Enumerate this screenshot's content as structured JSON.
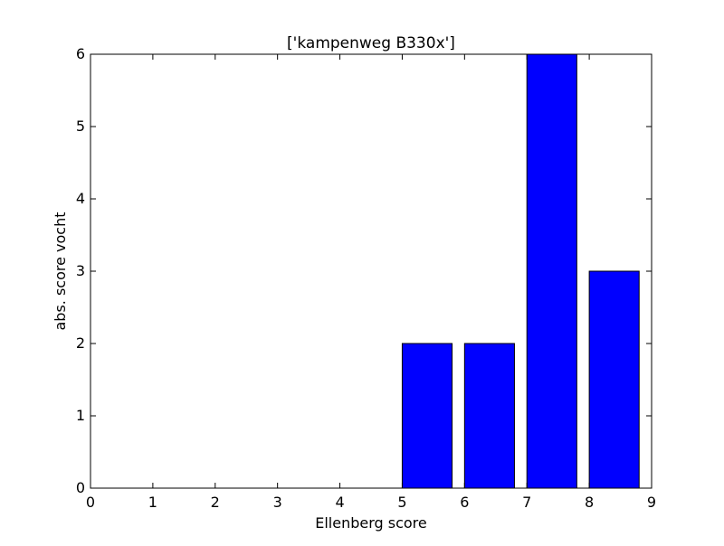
{
  "chart_data": {
    "type": "bar",
    "title": "['kampenweg B330x']",
    "xlabel": "Ellenberg score",
    "ylabel": "abs. score vocht",
    "xlim": [
      0,
      9
    ],
    "ylim": [
      0,
      6
    ],
    "xticks": [
      "0",
      "1",
      "2",
      "3",
      "4",
      "5",
      "6",
      "7",
      "8",
      "9"
    ],
    "yticks": [
      "0",
      "1",
      "2",
      "3",
      "4",
      "5",
      "6"
    ],
    "bar_width": 0.8,
    "bars": [
      {
        "x": 0,
        "value": 0
      },
      {
        "x": 1,
        "value": 0
      },
      {
        "x": 2,
        "value": 0
      },
      {
        "x": 3,
        "value": 0
      },
      {
        "x": 4,
        "value": 0
      },
      {
        "x": 5,
        "value": 2
      },
      {
        "x": 6,
        "value": 2
      },
      {
        "x": 7,
        "value": 6
      },
      {
        "x": 8,
        "value": 3
      }
    ],
    "bar_color": "#0000ff",
    "edge_color": "#000000",
    "grid": false,
    "legend": "none"
  }
}
